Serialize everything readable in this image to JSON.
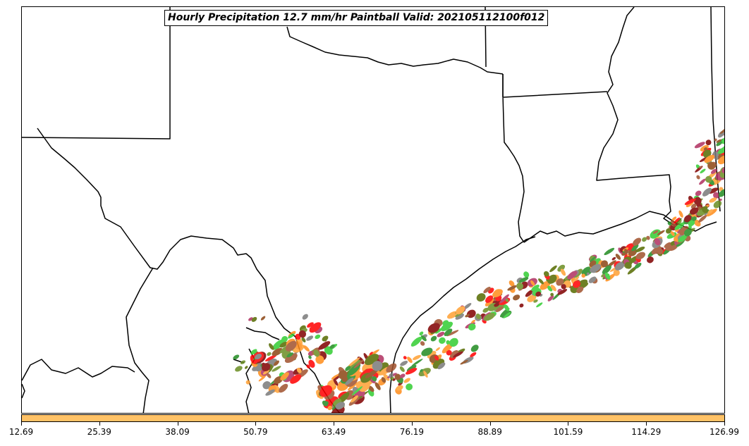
{
  "title": "Hourly Precipitation 12.7 mm/hr Paintball Valid: 202105112100f012",
  "colors": {
    "border": "#000000",
    "colorbar_fill": "#ffc266",
    "paintball_palette": [
      "#ff0000",
      "#ff8c1a",
      "#ffa033",
      "#228b22",
      "#32cd32",
      "#6b8e23",
      "#556b00",
      "#8b4513",
      "#a0522d",
      "#800000",
      "#b03060",
      "#7a7a7a"
    ]
  },
  "colorbar": {
    "ticks": [
      "12.69",
      "25.39",
      "38.09",
      "50.79",
      "63.49",
      "76.19",
      "88.89",
      "101.59",
      "114.29",
      "126.99"
    ],
    "range": [
      12.69,
      126.99
    ]
  }
}
